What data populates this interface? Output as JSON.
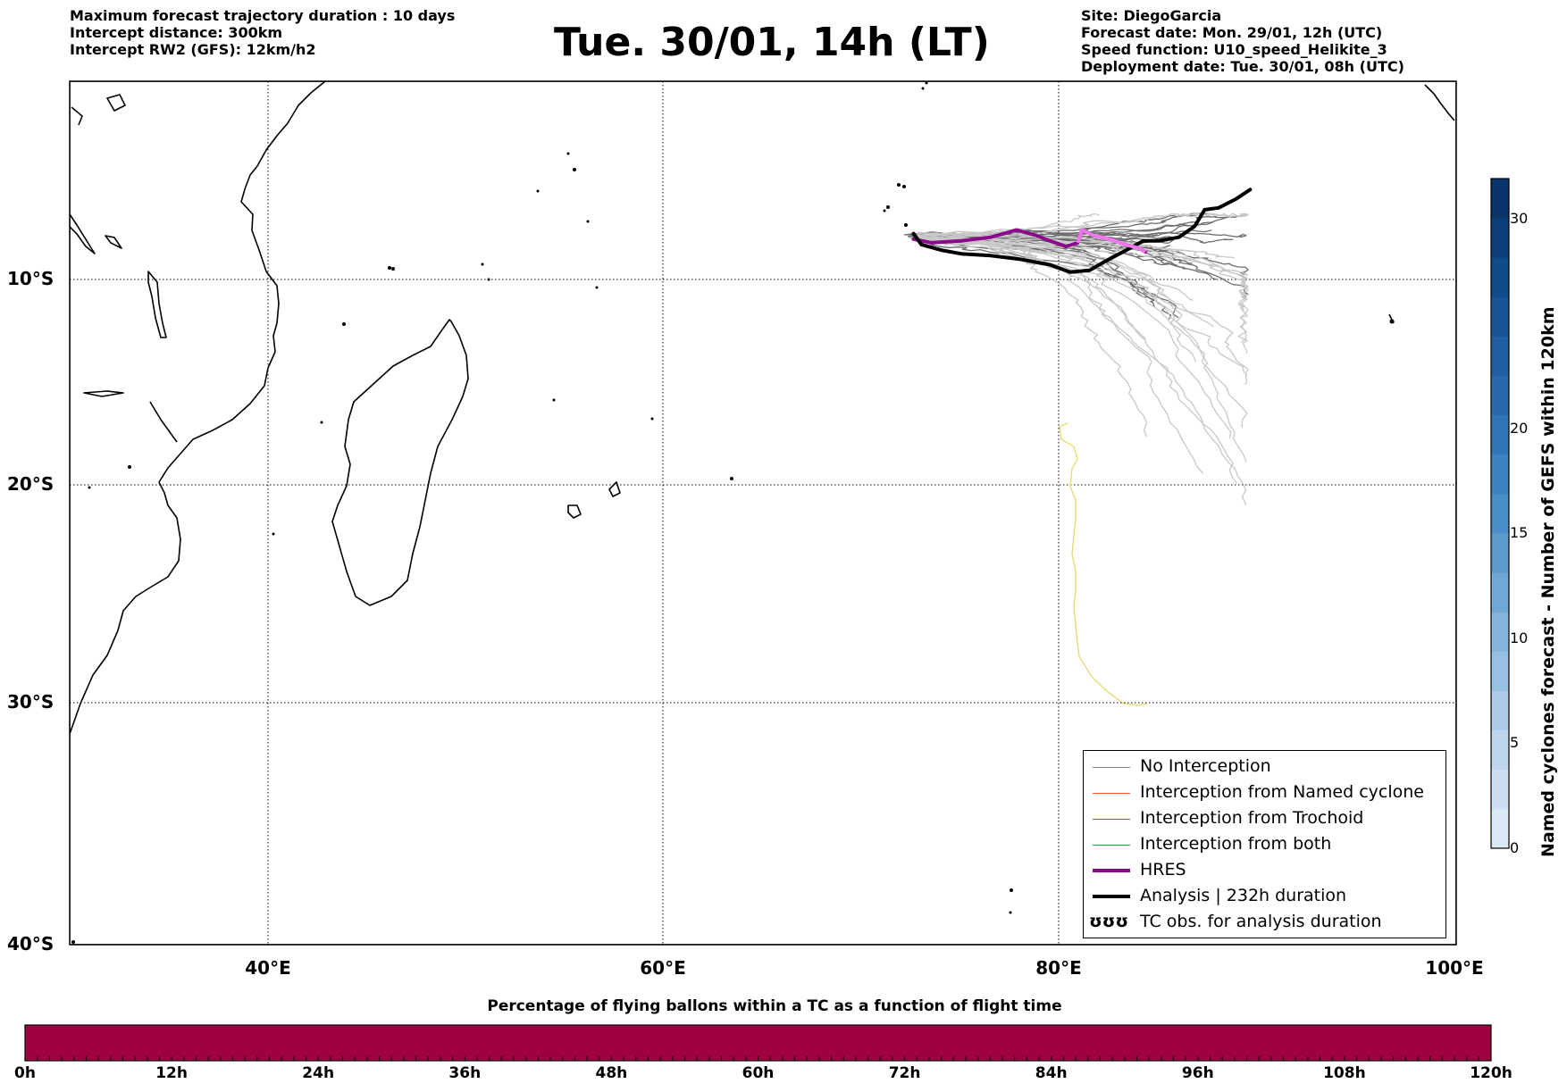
{
  "header": {
    "left": [
      "Maximum forecast trajectory duration : 10 days",
      "Intercept distance: 300km",
      "Intercept RW2 (GFS):  12km/h2"
    ],
    "title": "Tue. 30/01, 14h (LT)",
    "right": [
      "Site: DiegoGarcia",
      "Forecast date: Mon. 29/01, 12h (UTC)",
      "Speed function: U10_speed_Helikite_3",
      "Deployment date: Tue. 30/01, 08h (UTC)"
    ]
  },
  "map": {
    "lat_labels": [
      "10°S",
      "20°S",
      "30°S",
      "40°S"
    ],
    "lon_labels": [
      "40°E",
      "60°E",
      "80°E",
      "100°E"
    ],
    "extent": {
      "lon": [
        30,
        100
      ],
      "lat": [
        -40,
        0.8
      ]
    }
  },
  "legend": {
    "items": [
      {
        "label": "No Interception",
        "color": "#808080",
        "style": "thin"
      },
      {
        "label": "Interception from Named cyclone",
        "color": "#e8601c",
        "style": "thin"
      },
      {
        "label": "Interception from Trochoid",
        "color": "#7a6a10",
        "style": "thin"
      },
      {
        "label": "Interception from both",
        "color": "#2a9a2a",
        "style": "thin"
      },
      {
        "label": "HRES",
        "color": "#8b0a8b",
        "style": "thick"
      },
      {
        "label": "Analysis | 232h duration",
        "color": "#000000",
        "style": "thick"
      },
      {
        "label": "TC obs. for analysis duration",
        "color": "#000000",
        "style": "symbol",
        "symbol": "ʊʊʊ"
      }
    ]
  },
  "colorbar": {
    "title": "Named cyclones forecast - Number of GEFS within 120km",
    "ticks": [
      "0",
      "5",
      "10",
      "15",
      "20",
      "30"
    ],
    "colors": [
      "#dbe8f6",
      "#ccdff2",
      "#bdd6ee",
      "#abcbe8",
      "#98c0e2",
      "#84b4dc",
      "#6fa7d5",
      "#5b9bce",
      "#4a8ec7",
      "#3c82c0",
      "#3175b8",
      "#2869ae",
      "#205ea3",
      "#185496",
      "#114a88",
      "#0b3f79",
      "#083469"
    ]
  },
  "bottom_bar": {
    "title": "Percentage of flying ballons within a TC as a function of flight time",
    "ticks": [
      "0h",
      "12h",
      "24h",
      "36h",
      "48h",
      "60h",
      "72h",
      "84h",
      "96h",
      "108h",
      "120h"
    ],
    "color": "#9e0040"
  },
  "chart_data": {
    "type": "map",
    "series": [
      {
        "name": "HRES",
        "color": "#8b0a8b",
        "points": [
          [
            72.6,
            -7.8
          ],
          [
            73.5,
            -8.0
          ],
          [
            75.0,
            -7.9
          ],
          [
            76.5,
            -7.7
          ],
          [
            77.8,
            -7.3
          ],
          [
            78.8,
            -7.6
          ],
          [
            79.5,
            -7.9
          ],
          [
            80.3,
            -8.2
          ],
          [
            80.9,
            -8.0
          ],
          [
            81.1,
            -7.3
          ],
          [
            81.7,
            -7.6
          ],
          [
            82.5,
            -7.8
          ],
          [
            83.3,
            -8.1
          ],
          [
            84.0,
            -8.3
          ],
          [
            84.3,
            -8.5
          ]
        ]
      },
      {
        "name": "Analysis | 232h duration",
        "color": "#000000",
        "points": [
          [
            72.6,
            -7.5
          ],
          [
            73.0,
            -8.1
          ],
          [
            74.0,
            -8.4
          ],
          [
            75.0,
            -8.6
          ],
          [
            76.5,
            -8.7
          ],
          [
            78.0,
            -8.9
          ],
          [
            79.5,
            -9.2
          ],
          [
            80.5,
            -9.6
          ],
          [
            81.5,
            -9.5
          ],
          [
            82.3,
            -9.0
          ],
          [
            83.0,
            -8.6
          ],
          [
            83.7,
            -8.2
          ],
          [
            84.2,
            -7.9
          ],
          [
            85.0,
            -7.9
          ],
          [
            86.0,
            -7.7
          ],
          [
            86.8,
            -7.1
          ],
          [
            87.3,
            -6.2
          ],
          [
            88.0,
            -6.1
          ],
          [
            88.9,
            -5.6
          ],
          [
            89.6,
            -5.1
          ]
        ]
      }
    ]
  }
}
